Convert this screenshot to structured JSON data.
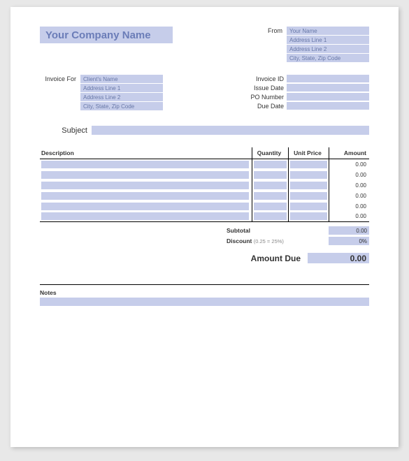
{
  "colors": {
    "fill": "#c6cdea",
    "accent_text": "#6b7db8",
    "field_text": "#6878a8",
    "page_bg": "#ffffff",
    "outer_bg": "#e8e8e8",
    "border": "#000000"
  },
  "header": {
    "company_name": "Your Company Name",
    "from_label": "From",
    "from_fields": [
      "Your Name",
      "Address Line 1",
      "Address Line 2",
      "City, State, Zip Code"
    ]
  },
  "invoice_for": {
    "label": "Invoice For",
    "fields": [
      "Client's Name",
      "Address Line 1",
      "Address Line 2",
      "City, State, Zip Code"
    ]
  },
  "meta": {
    "rows": [
      {
        "label": "Invoice ID",
        "value": ""
      },
      {
        "label": "Issue Date",
        "value": ""
      },
      {
        "label": "PO Number",
        "value": ""
      },
      {
        "label": "Due Date",
        "value": ""
      }
    ]
  },
  "subject": {
    "label": "Subject",
    "value": ""
  },
  "table": {
    "columns": [
      "Description",
      "Quantity",
      "Unit Price",
      "Amount"
    ],
    "rows": [
      {
        "desc": "",
        "qty": "",
        "price": "",
        "amount": "0.00"
      },
      {
        "desc": "",
        "qty": "",
        "price": "",
        "amount": "0.00"
      },
      {
        "desc": "",
        "qty": "",
        "price": "",
        "amount": "0.00"
      },
      {
        "desc": "",
        "qty": "",
        "price": "",
        "amount": "0.00"
      },
      {
        "desc": "",
        "qty": "",
        "price": "",
        "amount": "0.00"
      },
      {
        "desc": "",
        "qty": "",
        "price": "",
        "amount": "0.00"
      }
    ]
  },
  "totals": {
    "subtotal_label": "Subtotal",
    "subtotal": "0.00",
    "discount_label": "Discount",
    "discount_hint": "(0.25 = 25%)",
    "discount": "0%",
    "due_label": "Amount Due",
    "due": "0.00"
  },
  "notes": {
    "label": "Notes",
    "value": ""
  }
}
